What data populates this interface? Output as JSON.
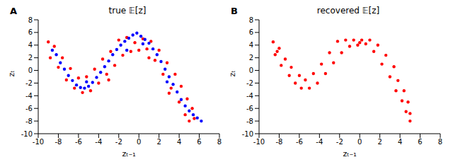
{
  "chart_data": [
    {
      "type": "scatter",
      "panel": "A",
      "title": "true 𝔼[z]",
      "x_label": "zₜ₋₁",
      "y_label": "zₜ",
      "xlim": [
        -10,
        8
      ],
      "xticks": [
        -10,
        -8,
        -6,
        -4,
        -2,
        0,
        2,
        4,
        6,
        8
      ],
      "ylim": [
        -10,
        8
      ],
      "yticks": [
        -10,
        -8,
        -6,
        -4,
        -2,
        0,
        2,
        4,
        6,
        8
      ],
      "marker": "circle",
      "grid": false,
      "series": [
        {
          "color": "#ff0000",
          "x": [
            -9.0,
            -8.8,
            -8.4,
            -8.0,
            -7.6,
            -7.2,
            -6.8,
            -6.4,
            -6.0,
            -5.6,
            -5.2,
            -4.8,
            -4.4,
            -4.0,
            -3.6,
            -3.2,
            -2.8,
            -2.4,
            -2.0,
            -1.6,
            -1.2,
            -0.8,
            -0.4,
            0.0,
            0.4,
            0.8,
            1.2,
            1.6,
            2.0,
            2.4,
            2.8,
            3.2,
            3.6,
            4.0,
            4.2,
            4.6,
            4.8,
            5.0,
            5.3,
            5.5,
            -3.0,
            1.0,
            3.0
          ],
          "values": [
            4.5,
            2.0,
            3.8,
            0.5,
            2.0,
            -1.5,
            0.3,
            -2.8,
            -1.2,
            -3.5,
            -1.0,
            -3.2,
            0.2,
            -2.0,
            1.8,
            -0.6,
            3.0,
            0.8,
            4.8,
            2.4,
            5.2,
            3.0,
            4.4,
            3.2,
            5.0,
            3.4,
            4.6,
            1.6,
            3.2,
            -0.6,
            1.2,
            -2.8,
            -0.6,
            -5.0,
            -2.5,
            -7.0,
            -4.5,
            -8.0,
            -6.0,
            -7.6,
            -1.5,
            2.0,
            -3.6
          ]
        },
        {
          "color": "#0000ff",
          "x": [
            -8.6,
            -8.2,
            -7.8,
            -7.4,
            -7.0,
            -6.6,
            -6.2,
            -5.8,
            -5.4,
            -5.0,
            -4.6,
            -4.2,
            -3.8,
            -3.4,
            -3.0,
            -2.6,
            -2.2,
            -1.8,
            -1.4,
            -1.0,
            -0.6,
            -0.2,
            0.2,
            0.6,
            1.0,
            1.4,
            1.8,
            2.2,
            2.6,
            3.0,
            3.4,
            3.8,
            4.2,
            4.6,
            5.0,
            5.4,
            5.8,
            6.2,
            -1.2,
            0.4,
            -5.2,
            2.8
          ],
          "values": [
            3.2,
            2.5,
            1.2,
            0.2,
            -0.8,
            -1.6,
            -2.3,
            -2.7,
            -2.8,
            -2.5,
            -1.9,
            -1.1,
            -0.3,
            0.6,
            1.5,
            2.5,
            3.3,
            4.0,
            4.6,
            5.1,
            5.6,
            5.9,
            5.4,
            4.9,
            4.3,
            3.4,
            2.5,
            1.4,
            0.2,
            -1.0,
            -2.2,
            -3.4,
            -4.6,
            -5.6,
            -6.4,
            -7.0,
            -7.5,
            -8.0,
            3.2,
            4.2,
            -1.8,
            -1.8
          ]
        }
      ]
    },
    {
      "type": "scatter",
      "panel": "B",
      "title": "recovered 𝔼[z]",
      "x_label": "zₜ₋₁",
      "y_label": "zₜ",
      "xlim": [
        -10,
        8
      ],
      "xticks": [
        -10,
        -8,
        -6,
        -4,
        -2,
        0,
        2,
        4,
        6,
        8
      ],
      "ylim": [
        -10,
        8
      ],
      "yticks": [
        -10,
        -8,
        -6,
        -4,
        -2,
        0,
        2,
        4,
        6,
        8
      ],
      "marker": "circle",
      "grid": false,
      "series": [
        {
          "color": "#ff0000",
          "x": [
            -8.6,
            -8.4,
            -8.0,
            -7.8,
            -7.4,
            -7.0,
            -6.8,
            -6.4,
            -6.0,
            -5.8,
            -5.4,
            -5.0,
            -4.6,
            -4.2,
            -3.8,
            -3.4,
            -3.0,
            -2.6,
            -2.2,
            -1.8,
            -1.4,
            -1.0,
            -0.6,
            -0.2,
            0.2,
            0.6,
            1.0,
            1.4,
            1.8,
            2.2,
            2.6,
            3.0,
            3.4,
            3.6,
            3.8,
            4.2,
            4.4,
            4.6,
            4.8,
            5.0,
            5.0,
            -8.2,
            0.0
          ],
          "values": [
            4.5,
            2.5,
            3.5,
            0.8,
            1.8,
            -0.8,
            0.5,
            -2.0,
            -0.8,
            -2.8,
            -1.5,
            -2.8,
            -0.5,
            -2.0,
            1.0,
            -0.5,
            2.8,
            1.2,
            4.6,
            2.8,
            4.8,
            3.8,
            4.8,
            4.0,
            4.8,
            4.2,
            4.8,
            3.0,
            4.0,
            1.0,
            2.4,
            -1.0,
            0.6,
            -3.2,
            -1.6,
            -4.8,
            -3.2,
            -6.5,
            -5.0,
            -8.0,
            -6.8,
            3.0,
            4.4
          ]
        }
      ]
    }
  ]
}
